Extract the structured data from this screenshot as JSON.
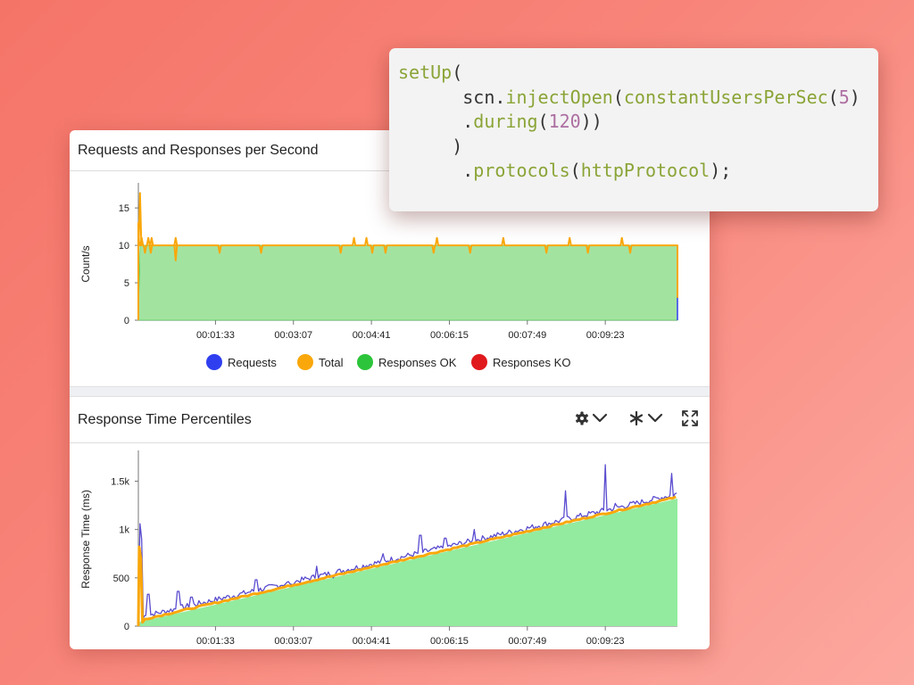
{
  "colors": {
    "requests": "#2f3ff0",
    "total": "#f9a70a",
    "responses_ok": "#2cc43a",
    "responses_ko": "#e0191d",
    "ok_fill": "#a3e3a0",
    "percentile_fill": "#93eb9f",
    "percentile_line": "#5a4ccf"
  },
  "panel1": {
    "title": "Requests and Responses per Second",
    "legend": [
      {
        "label": "Requests",
        "color": "#2f3ff0"
      },
      {
        "label": "Total",
        "color": "#f9a70a"
      },
      {
        "label": "Responses OK",
        "color": "#2cc43a"
      },
      {
        "label": "Responses KO",
        "color": "#e0191d"
      }
    ]
  },
  "panel2": {
    "title": "Response Time Percentiles",
    "controls": {
      "settings_icon": "gear-icon",
      "series_icon": "asterisk-icon",
      "expand_icon": "expand-icon"
    }
  },
  "code": {
    "lines": [
      [
        {
          "t": "setUp",
          "c": "fn"
        },
        {
          "t": "(",
          "c": "plain"
        }
      ],
      [
        {
          "t": "      scn.",
          "c": "plain"
        },
        {
          "t": "injectOpen",
          "c": "fn"
        },
        {
          "t": "(",
          "c": "plain"
        },
        {
          "t": "constantUsersPerSec",
          "c": "fn"
        },
        {
          "t": "(",
          "c": "plain"
        },
        {
          "t": "5",
          "c": "num"
        },
        {
          "t": ")",
          "c": "plain"
        }
      ],
      [
        {
          "t": "      .",
          "c": "plain"
        },
        {
          "t": "during",
          "c": "fn"
        },
        {
          "t": "(",
          "c": "plain"
        },
        {
          "t": "120",
          "c": "num"
        },
        {
          "t": "))",
          "c": "plain"
        }
      ],
      [
        {
          "t": "     )",
          "c": "plain"
        }
      ],
      [
        {
          "t": "      .",
          "c": "plain"
        },
        {
          "t": "protocols",
          "c": "fn"
        },
        {
          "t": "(",
          "c": "plain"
        },
        {
          "t": "httpProtocol",
          "c": "fn"
        },
        {
          "t": ");",
          "c": "plain"
        }
      ]
    ]
  },
  "chart_data": [
    {
      "type": "area",
      "title": "Requests and Responses per Second",
      "ylabel": "Count/s",
      "xlabel": "",
      "ylim": [
        0,
        18
      ],
      "yticks": [
        "0",
        "5",
        "10",
        "15"
      ],
      "xticks": [
        "00:01:33",
        "00:03:07",
        "00:04:41",
        "00:06:15",
        "00:07:49",
        "00:09:23"
      ],
      "x_range_seconds": [
        0,
        650
      ],
      "xticks_seconds": [
        93,
        187,
        281,
        375,
        469,
        563
      ],
      "series": [
        {
          "name": "Requests",
          "baseline": 10,
          "spikes": [
            [
              2,
              17
            ],
            [
              4,
              11
            ],
            [
              12,
              11
            ],
            [
              16,
              11
            ],
            [
              45,
              11
            ],
            [
              260,
              11
            ],
            [
              275,
              11
            ],
            [
              360,
              11
            ],
            [
              440,
              11
            ],
            [
              520,
              11
            ],
            [
              583,
              11
            ]
          ]
        },
        {
          "name": "Total",
          "baseline": 10,
          "spikes": [
            [
              2,
              17
            ],
            [
              4,
              11
            ],
            [
              12,
              11
            ],
            [
              16,
              11
            ],
            [
              45,
              11
            ],
            [
              260,
              11
            ],
            [
              275,
              11
            ],
            [
              360,
              11
            ],
            [
              440,
              11
            ],
            [
              520,
              11
            ],
            [
              583,
              11
            ]
          ],
          "dips": [
            [
              8,
              9
            ],
            [
              15,
              9
            ],
            [
              45,
              8
            ],
            [
              98,
              9
            ],
            [
              148,
              9
            ],
            [
              244,
              9
            ],
            [
              282,
              9
            ],
            [
              298,
              9
            ],
            [
              356,
              9
            ],
            [
              400,
              9
            ],
            [
              492,
              9
            ],
            [
              542,
              9
            ],
            [
              593,
              9
            ]
          ]
        },
        {
          "name": "Responses OK",
          "baseline": 10
        },
        {
          "name": "Responses KO",
          "baseline": 0
        }
      ]
    },
    {
      "type": "area",
      "title": "Response Time Percentiles",
      "ylabel": "Response Time (ms)",
      "xlabel": "",
      "ylim": [
        0,
        1800
      ],
      "yticks": [
        "0",
        "500",
        "1k",
        "1.5k"
      ],
      "xticks": [
        "00:01:33",
        "00:03:07",
        "00:04:41",
        "00:06:15",
        "00:07:49",
        "00:09:23"
      ],
      "x_range_seconds": [
        0,
        650
      ],
      "xticks_seconds": [
        93,
        187,
        281,
        375,
        469,
        563
      ],
      "trend": {
        "start": [
          0,
          40
        ],
        "end": [
          650,
          1320
        ]
      },
      "initial_spike": {
        "x": 2,
        "y": 1060
      },
      "peaks": [
        [
          12,
          330
        ],
        [
          48,
          360
        ],
        [
          64,
          300
        ],
        [
          142,
          480
        ],
        [
          186,
          430
        ],
        [
          215,
          620
        ],
        [
          235,
          500
        ],
        [
          295,
          750
        ],
        [
          340,
          940
        ],
        [
          370,
          910
        ],
        [
          405,
          1000
        ],
        [
          515,
          1400
        ],
        [
          563,
          1670
        ],
        [
          575,
          1270
        ],
        [
          643,
          1580
        ]
      ]
    }
  ]
}
